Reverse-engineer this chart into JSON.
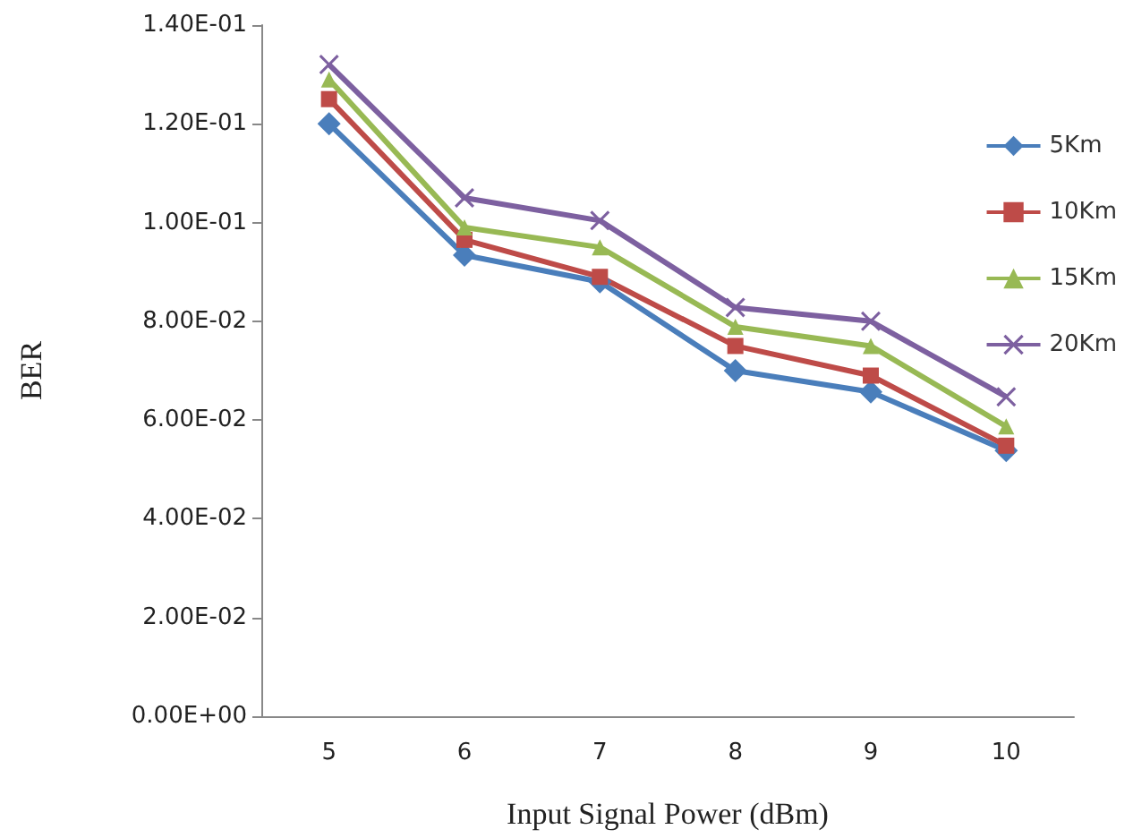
{
  "chart_data": {
    "type": "line",
    "xlabel": "Input Signal Power (dBm)",
    "ylabel": "BER",
    "categories": [
      "5",
      "6",
      "7",
      "8",
      "9",
      "10"
    ],
    "series": [
      {
        "name": "5Km",
        "color": "#4a7ebb",
        "marker": "diamond",
        "values": [
          0.12,
          0.0934,
          0.088,
          0.07,
          0.0657,
          0.0538
        ]
      },
      {
        "name": "10Km",
        "color": "#be4b48",
        "marker": "square",
        "values": [
          0.125,
          0.0965,
          0.089,
          0.075,
          0.069,
          0.0548
        ]
      },
      {
        "name": "15Km",
        "color": "#98b954",
        "marker": "triangle",
        "values": [
          0.129,
          0.099,
          0.095,
          0.0789,
          0.075,
          0.0587
        ]
      },
      {
        "name": "20Km",
        "color": "#7d60a0",
        "marker": "cross",
        "values": [
          0.132,
          0.105,
          0.1004,
          0.0828,
          0.08,
          0.0647
        ]
      }
    ],
    "ylim": [
      0,
      0.14
    ],
    "yticks": [
      {
        "value": 0,
        "label": "0.00E+00"
      },
      {
        "value": 0.02,
        "label": "2.00E-02"
      },
      {
        "value": 0.04,
        "label": "4.00E-02"
      },
      {
        "value": 0.06,
        "label": "6.00E-02"
      },
      {
        "value": 0.08,
        "label": "8.00E-02"
      },
      {
        "value": 0.1,
        "label": "1.00E-01"
      },
      {
        "value": 0.12,
        "label": "1.20E-01"
      },
      {
        "value": 0.14,
        "label": "1.40E-01"
      }
    ],
    "grid": false,
    "legend": "right",
    "line_style": "solid"
  }
}
